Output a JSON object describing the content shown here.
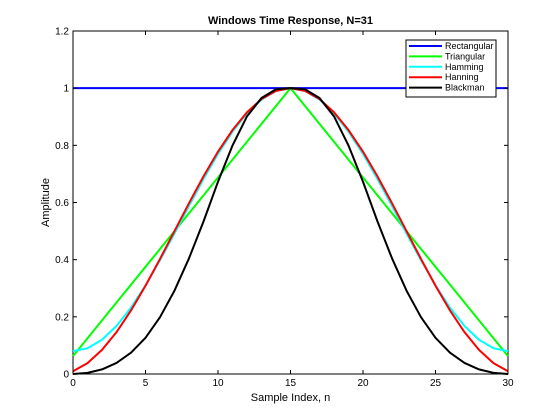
{
  "chart_data": {
    "type": "line",
    "title": "Windows Time Response, N=31",
    "xlabel": "Sample Index, n",
    "ylabel": "Amplitude",
    "xlim": [
      0,
      30
    ],
    "ylim": [
      0,
      1.2
    ],
    "xticks": [
      0,
      5,
      10,
      15,
      20,
      25,
      30
    ],
    "yticks": [
      0,
      0.2,
      0.4,
      0.6,
      0.8,
      1,
      1.2
    ],
    "ytick_labels": [
      "0",
      "0.2",
      "0.4",
      "0.6",
      "0.8",
      "1",
      "1.2"
    ],
    "grid": false,
    "legend_position": "top-right",
    "series": [
      {
        "name": "Rectangular",
        "color": "#0000ff",
        "x": [
          0,
          1,
          2,
          3,
          4,
          5,
          6,
          7,
          8,
          9,
          10,
          11,
          12,
          13,
          14,
          15,
          16,
          17,
          18,
          19,
          20,
          21,
          22,
          23,
          24,
          25,
          26,
          27,
          28,
          29,
          30
        ],
        "y": [
          1,
          1,
          1,
          1,
          1,
          1,
          1,
          1,
          1,
          1,
          1,
          1,
          1,
          1,
          1,
          1,
          1,
          1,
          1,
          1,
          1,
          1,
          1,
          1,
          1,
          1,
          1,
          1,
          1,
          1,
          1
        ]
      },
      {
        "name": "Triangular",
        "color": "#00ff00",
        "x": [
          0,
          1,
          2,
          3,
          4,
          5,
          6,
          7,
          8,
          9,
          10,
          11,
          12,
          13,
          14,
          15,
          16,
          17,
          18,
          19,
          20,
          21,
          22,
          23,
          24,
          25,
          26,
          27,
          28,
          29,
          30
        ],
        "y": [
          0.0625,
          0.125,
          0.1875,
          0.25,
          0.3125,
          0.375,
          0.4375,
          0.5,
          0.5625,
          0.625,
          0.6875,
          0.75,
          0.8125,
          0.875,
          0.9375,
          1,
          0.9375,
          0.875,
          0.8125,
          0.75,
          0.6875,
          0.625,
          0.5625,
          0.5,
          0.4375,
          0.375,
          0.3125,
          0.25,
          0.1875,
          0.125,
          0.0625
        ]
      },
      {
        "name": "Hamming",
        "color": "#00ffff",
        "x": [
          0,
          1,
          2,
          3,
          4,
          5,
          6,
          7,
          8,
          9,
          10,
          11,
          12,
          13,
          14,
          15,
          16,
          17,
          18,
          19,
          20,
          21,
          22,
          23,
          24,
          25,
          26,
          27,
          28,
          29,
          30
        ],
        "y": [
          0.08,
          0.0901,
          0.1198,
          0.1679,
          0.2322,
          0.31,
          0.3979,
          0.4919,
          0.5881,
          0.6821,
          0.77,
          0.8478,
          0.9121,
          0.9602,
          0.9899,
          1,
          0.9899,
          0.9602,
          0.9121,
          0.8478,
          0.77,
          0.6821,
          0.5881,
          0.4919,
          0.3979,
          0.31,
          0.2322,
          0.1679,
          0.1198,
          0.0901,
          0.08
        ]
      },
      {
        "name": "Hanning",
        "color": "#ff0000",
        "x": [
          0,
          1,
          2,
          3,
          4,
          5,
          6,
          7,
          8,
          9,
          10,
          11,
          12,
          13,
          14,
          15,
          16,
          17,
          18,
          19,
          20,
          21,
          22,
          23,
          24,
          25,
          26,
          27,
          28,
          29,
          30
        ],
        "y": [
          0.0096,
          0.0381,
          0.0843,
          0.1464,
          0.2222,
          0.3087,
          0.4025,
          0.5,
          0.5975,
          0.6913,
          0.7778,
          0.8536,
          0.9157,
          0.9619,
          0.9904,
          1,
          0.9904,
          0.9619,
          0.9157,
          0.8536,
          0.7778,
          0.6913,
          0.5975,
          0.5,
          0.4025,
          0.3087,
          0.2222,
          0.1464,
          0.0843,
          0.0381,
          0.0096
        ]
      },
      {
        "name": "Blackman",
        "color": "#000000",
        "x": [
          0,
          1,
          2,
          3,
          4,
          5,
          6,
          7,
          8,
          9,
          10,
          11,
          12,
          13,
          14,
          15,
          16,
          17,
          18,
          19,
          20,
          21,
          22,
          23,
          24,
          25,
          26,
          27,
          28,
          29,
          30
        ],
        "y": [
          0,
          0.0039,
          0.0161,
          0.0388,
          0.0745,
          0.1267,
          0.1988,
          0.2918,
          0.4047,
          0.5336,
          0.6726,
          0.7994,
          0.9014,
          0.9657,
          0.9961,
          1,
          0.9961,
          0.9657,
          0.9014,
          0.7994,
          0.6726,
          0.5336,
          0.4047,
          0.2918,
          0.1988,
          0.1267,
          0.0745,
          0.0388,
          0.0161,
          0.0039,
          0
        ]
      }
    ]
  }
}
